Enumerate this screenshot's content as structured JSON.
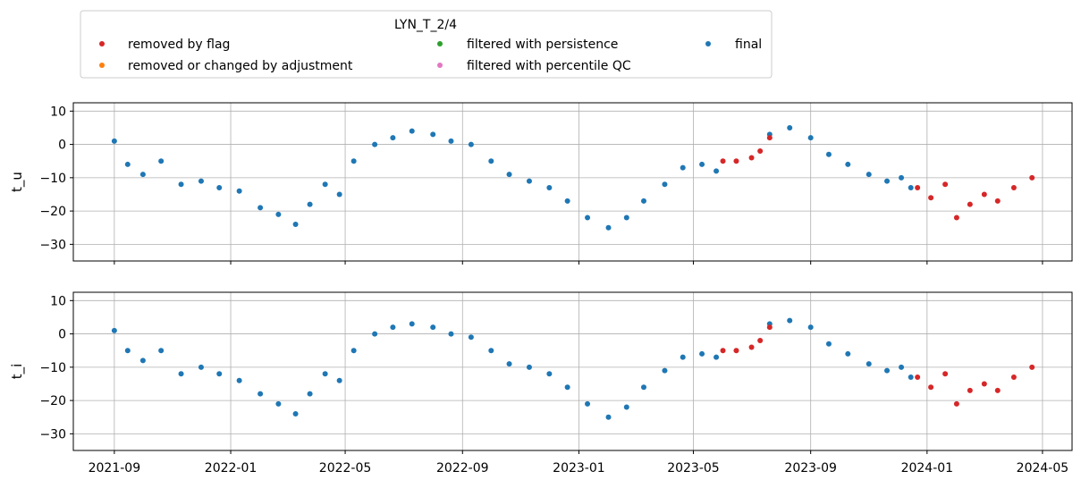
{
  "legend": {
    "title": "LYN_T_2/4",
    "items": [
      {
        "label": "removed by flag",
        "color": "#d62728"
      },
      {
        "label": "removed or changed by adjustment",
        "color": "#ff7f0e"
      },
      {
        "label": "filtered with persistence",
        "color": "#2ca02c"
      },
      {
        "label": "filtered with percentile QC",
        "color": "#e377c2"
      },
      {
        "label": "final",
        "color": "#1f77b4"
      }
    ]
  },
  "chart_data": [
    {
      "type": "scatter",
      "ylabel": "t_u",
      "ylim": [
        -35,
        12.5
      ],
      "yticks": [
        10,
        0,
        -10,
        -20,
        -30
      ],
      "xlim": [
        "2021-07-20",
        "2024-06-01"
      ],
      "xticks": [
        "2021-09",
        "2022-01",
        "2022-05",
        "2022-09",
        "2023-01",
        "2023-05",
        "2023-09",
        "2024-01",
        "2024-05"
      ],
      "grid": true,
      "series": [
        {
          "name": "final",
          "color": "#1f77b4",
          "points": [
            [
              "2021-09-01",
              1
            ],
            [
              "2021-09-15",
              -6
            ],
            [
              "2021-10-01",
              -9
            ],
            [
              "2021-10-20",
              -5
            ],
            [
              "2021-11-10",
              -12
            ],
            [
              "2021-12-01",
              -11
            ],
            [
              "2021-12-20",
              -13
            ],
            [
              "2022-01-10",
              -14
            ],
            [
              "2022-02-01",
              -19
            ],
            [
              "2022-02-20",
              -21
            ],
            [
              "2022-03-10",
              -24
            ],
            [
              "2022-03-25",
              -18
            ],
            [
              "2022-04-10",
              -12
            ],
            [
              "2022-04-25",
              -15
            ],
            [
              "2022-05-10",
              -5
            ],
            [
              "2022-06-01",
              0
            ],
            [
              "2022-06-20",
              2
            ],
            [
              "2022-07-10",
              4
            ],
            [
              "2022-08-01",
              3
            ],
            [
              "2022-08-20",
              1
            ],
            [
              "2022-09-10",
              0
            ],
            [
              "2022-10-01",
              -5
            ],
            [
              "2022-10-20",
              -9
            ],
            [
              "2022-11-10",
              -11
            ],
            [
              "2022-12-01",
              -13
            ],
            [
              "2022-12-20",
              -17
            ],
            [
              "2023-01-10",
              -22
            ],
            [
              "2023-02-01",
              -25
            ],
            [
              "2023-02-20",
              -22
            ],
            [
              "2023-03-10",
              -17
            ],
            [
              "2023-04-01",
              -12
            ],
            [
              "2023-04-20",
              -7
            ],
            [
              "2023-05-10",
              -6
            ],
            [
              "2023-05-25",
              -8
            ],
            [
              "2023-07-20",
              3
            ],
            [
              "2023-08-10",
              5
            ],
            [
              "2023-09-01",
              2
            ],
            [
              "2023-09-20",
              -3
            ],
            [
              "2023-10-10",
              -6
            ],
            [
              "2023-11-01",
              -9
            ],
            [
              "2023-11-20",
              -11
            ],
            [
              "2023-12-05",
              -10
            ],
            [
              "2023-12-15",
              -13
            ]
          ]
        },
        {
          "name": "removed by flag",
          "color": "#d62728",
          "points": [
            [
              "2023-06-01",
              -5
            ],
            [
              "2023-06-15",
              -5
            ],
            [
              "2023-07-01",
              -4
            ],
            [
              "2023-07-10",
              -2
            ],
            [
              "2023-07-20",
              2
            ],
            [
              "2023-12-22",
              -13
            ],
            [
              "2024-01-05",
              -16
            ],
            [
              "2024-01-20",
              -12
            ],
            [
              "2024-02-01",
              -22
            ],
            [
              "2024-02-15",
              -18
            ],
            [
              "2024-03-01",
              -15
            ],
            [
              "2024-03-15",
              -17
            ],
            [
              "2024-04-01",
              -13
            ],
            [
              "2024-04-20",
              -10
            ]
          ]
        }
      ]
    },
    {
      "type": "scatter",
      "ylabel": "t_i",
      "ylim": [
        -35,
        12.5
      ],
      "yticks": [
        10,
        0,
        -10,
        -20,
        -30
      ],
      "xlim": [
        "2021-07-20",
        "2024-06-01"
      ],
      "xticks": [
        "2021-09",
        "2022-01",
        "2022-05",
        "2022-09",
        "2023-01",
        "2023-05",
        "2023-09",
        "2024-01",
        "2024-05"
      ],
      "grid": true,
      "series": [
        {
          "name": "final",
          "color": "#1f77b4",
          "points": [
            [
              "2021-09-01",
              1
            ],
            [
              "2021-09-15",
              -5
            ],
            [
              "2021-10-01",
              -8
            ],
            [
              "2021-10-20",
              -5
            ],
            [
              "2021-11-10",
              -12
            ],
            [
              "2021-12-01",
              -10
            ],
            [
              "2021-12-20",
              -12
            ],
            [
              "2022-01-10",
              -14
            ],
            [
              "2022-02-01",
              -18
            ],
            [
              "2022-02-20",
              -21
            ],
            [
              "2022-03-10",
              -24
            ],
            [
              "2022-03-25",
              -18
            ],
            [
              "2022-04-10",
              -12
            ],
            [
              "2022-04-25",
              -14
            ],
            [
              "2022-05-10",
              -5
            ],
            [
              "2022-06-01",
              0
            ],
            [
              "2022-06-20",
              2
            ],
            [
              "2022-07-10",
              3
            ],
            [
              "2022-08-01",
              2
            ],
            [
              "2022-08-20",
              0
            ],
            [
              "2022-09-10",
              -1
            ],
            [
              "2022-10-01",
              -5
            ],
            [
              "2022-10-20",
              -9
            ],
            [
              "2022-11-10",
              -10
            ],
            [
              "2022-12-01",
              -12
            ],
            [
              "2022-12-20",
              -16
            ],
            [
              "2023-01-10",
              -21
            ],
            [
              "2023-02-01",
              -25
            ],
            [
              "2023-02-20",
              -22
            ],
            [
              "2023-03-10",
              -16
            ],
            [
              "2023-04-01",
              -11
            ],
            [
              "2023-04-20",
              -7
            ],
            [
              "2023-05-10",
              -6
            ],
            [
              "2023-05-25",
              -7
            ],
            [
              "2023-07-20",
              3
            ],
            [
              "2023-08-10",
              4
            ],
            [
              "2023-09-01",
              2
            ],
            [
              "2023-09-20",
              -3
            ],
            [
              "2023-10-10",
              -6
            ],
            [
              "2023-11-01",
              -9
            ],
            [
              "2023-11-20",
              -11
            ],
            [
              "2023-12-05",
              -10
            ],
            [
              "2023-12-15",
              -13
            ]
          ]
        },
        {
          "name": "removed by flag",
          "color": "#d62728",
          "points": [
            [
              "2023-06-01",
              -5
            ],
            [
              "2023-06-15",
              -5
            ],
            [
              "2023-07-01",
              -4
            ],
            [
              "2023-07-10",
              -2
            ],
            [
              "2023-07-20",
              2
            ],
            [
              "2023-12-22",
              -13
            ],
            [
              "2024-01-05",
              -16
            ],
            [
              "2024-01-20",
              -12
            ],
            [
              "2024-02-01",
              -21
            ],
            [
              "2024-02-15",
              -17
            ],
            [
              "2024-03-01",
              -15
            ],
            [
              "2024-03-15",
              -17
            ],
            [
              "2024-04-01",
              -13
            ],
            [
              "2024-04-20",
              -10
            ]
          ]
        }
      ]
    }
  ]
}
